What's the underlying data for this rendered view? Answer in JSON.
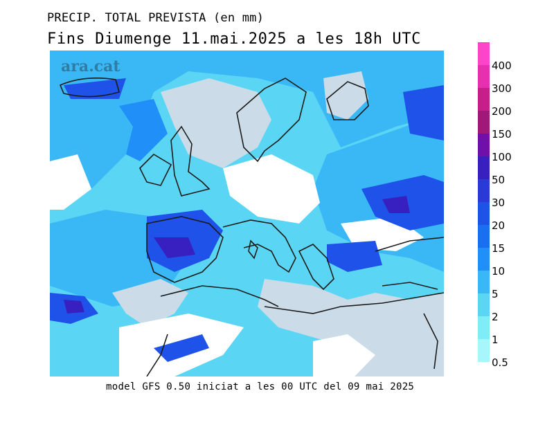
{
  "title_line1": "PRECIP. TOTAL PREVISTA (en mm)",
  "title_line2": "Fins Diumenge 11.mai.2025 a les 18h UTC",
  "watermark": "ara.cat",
  "footer": "model GFS 0.50 iniciat a les 00 UTC del 09 mai 2025",
  "legend": {
    "items": [
      {
        "label": "400",
        "color": "#ff44cc"
      },
      {
        "label": "300",
        "color": "#e82fb2"
      },
      {
        "label": "200",
        "color": "#c81e8c"
      },
      {
        "label": "150",
        "color": "#a0187a"
      },
      {
        "label": "100",
        "color": "#7010a8"
      },
      {
        "label": "50",
        "color": "#3820c0"
      },
      {
        "label": "30",
        "color": "#2a3ad8"
      },
      {
        "label": "20",
        "color": "#1e52e8"
      },
      {
        "label": "15",
        "color": "#1a6ef2"
      },
      {
        "label": "10",
        "color": "#2090f8"
      },
      {
        "label": "5",
        "color": "#3ab8f6"
      },
      {
        "label": "2",
        "color": "#5ad6f4"
      },
      {
        "label": "1",
        "color": "#80ecf8"
      },
      {
        "label": "0.5",
        "color": "#a8f6fc"
      }
    ]
  },
  "colors": {
    "land_no_precip": "#cbdce8",
    "sea_no_precip": "#ffffff",
    "coastline": "#1a1a1a"
  }
}
